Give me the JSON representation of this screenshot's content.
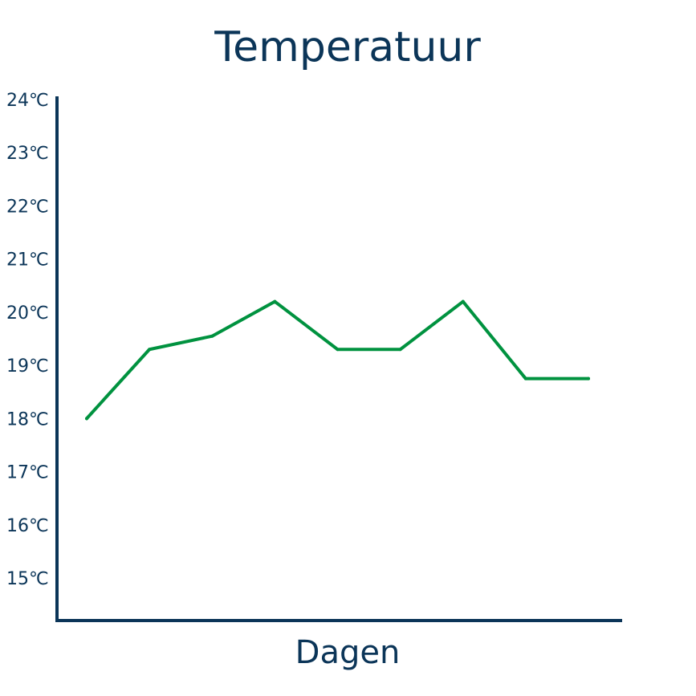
{
  "chart_data": {
    "type": "line",
    "title": "Temperatuur",
    "xlabel": "Dagen",
    "ylabel": "",
    "ylim": [
      14.2,
      24
    ],
    "yticks": [
      "15℃",
      "16℃",
      "17℃",
      "18℃",
      "19℃",
      "20℃",
      "21℃",
      "22℃",
      "23℃",
      "24℃"
    ],
    "ytick_values": [
      15,
      16,
      17,
      18,
      19,
      20,
      21,
      22,
      23,
      24
    ],
    "x": [
      1,
      2,
      3,
      4,
      5,
      6,
      7,
      8,
      9
    ],
    "series": [
      {
        "color": "#00923f",
        "values": [
          18.0,
          19.3,
          19.55,
          20.2,
          19.3,
          19.3,
          20.2,
          18.75,
          18.75
        ]
      }
    ],
    "grid": false,
    "legend": "none",
    "axis_color": "#0b3558",
    "text_color": "#0b3558"
  }
}
